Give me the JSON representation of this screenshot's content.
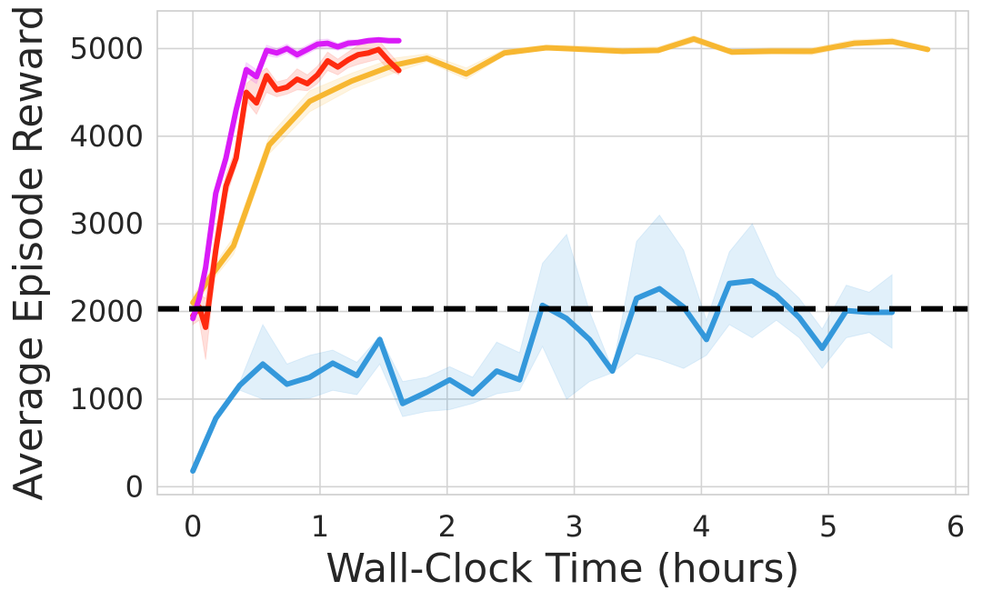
{
  "chart_data": {
    "type": "line",
    "xlabel": "Wall-Clock Time (hours)",
    "ylabel": "Average Episode Reward",
    "xlim": [
      -0.28,
      6.1
    ],
    "ylim": [
      -90,
      5430
    ],
    "xticks": [
      0,
      1,
      2,
      3,
      4,
      5,
      6
    ],
    "xtick_labels": [
      "0",
      "1",
      "2",
      "3",
      "4",
      "5",
      "6"
    ],
    "yticks": [
      0,
      1000,
      2000,
      3000,
      4000,
      5000
    ],
    "ytick_labels": [
      "0",
      "1000",
      "2000",
      "3000",
      "4000",
      "5000"
    ],
    "grid": true,
    "legend": "none",
    "reference_line": {
      "y": 2030,
      "style": "dashed",
      "color": "#000000"
    },
    "series": [
      {
        "color": "#3498db",
        "x": [
          0,
          0.18,
          0.37,
          0.55,
          0.74,
          0.92,
          1.1,
          1.29,
          1.47,
          1.65,
          1.84,
          2.02,
          2.2,
          2.39,
          2.57,
          2.75,
          2.94,
          3.12,
          3.3,
          3.49,
          3.67,
          3.86,
          4.04,
          4.22,
          4.4,
          4.59,
          4.77,
          4.95,
          5.14,
          5.32,
          5.5
        ],
        "y": [
          180,
          780,
          1160,
          1400,
          1170,
          1250,
          1410,
          1270,
          1680,
          950,
          1080,
          1220,
          1060,
          1320,
          1220,
          2070,
          1920,
          1680,
          1320,
          2150,
          2260,
          2050,
          1680,
          2320,
          2350,
          2180,
          1930,
          1580,
          2010,
          1990,
          1990
        ],
        "lower": [
          180,
          780,
          1100,
          1000,
          1000,
          1010,
          1100,
          1050,
          1400,
          800,
          860,
          880,
          950,
          1060,
          1100,
          1600,
          1000,
          1200,
          1300,
          1520,
          1450,
          1350,
          1500,
          1850,
          1700,
          1900,
          1700,
          1350,
          1700,
          1760,
          1580
        ],
        "upper": [
          180,
          780,
          1200,
          1850,
          1400,
          1500,
          1560,
          1420,
          1720,
          1200,
          1250,
          1370,
          1250,
          1650,
          1530,
          2550,
          2880,
          2000,
          1340,
          2800,
          3100,
          2700,
          1900,
          2680,
          3000,
          2400,
          2150,
          1800,
          2300,
          2220,
          2420
        ],
        "line_width": 6
      },
      {
        "color": "#f7b731",
        "x": [
          0,
          0.15,
          0.32,
          0.6,
          0.92,
          1.25,
          1.58,
          1.84,
          2.15,
          2.45,
          2.78,
          3.09,
          3.38,
          3.66,
          3.94,
          4.24,
          4.55,
          4.87,
          5.2,
          5.5,
          5.78
        ],
        "y": [
          2100,
          2420,
          2750,
          3900,
          4400,
          4630,
          4810,
          4890,
          4710,
          4950,
          5010,
          4990,
          4970,
          4980,
          5110,
          4960,
          4970,
          4970,
          5060,
          5080,
          4990
        ],
        "lower": [
          2020,
          2350,
          2650,
          3800,
          4280,
          4540,
          4720,
          4850,
          4650,
          4920,
          4990,
          4960,
          4940,
          4950,
          5070,
          4930,
          4940,
          4930,
          5030,
          5050,
          4970
        ],
        "upper": [
          2180,
          2490,
          2850,
          4000,
          4520,
          4720,
          4890,
          4940,
          4780,
          4990,
          5040,
          5030,
          5010,
          5020,
          5150,
          4990,
          5010,
          5010,
          5100,
          5120,
          5020
        ],
        "line_width": 6
      },
      {
        "color": "#ff2a0f",
        "x": [
          0,
          0.05,
          0.1,
          0.18,
          0.26,
          0.34,
          0.42,
          0.5,
          0.58,
          0.66,
          0.74,
          0.82,
          0.9,
          0.98,
          1.06,
          1.14,
          1.22,
          1.3,
          1.38,
          1.46,
          1.54,
          1.62
        ],
        "y": [
          1950,
          2050,
          1820,
          2700,
          3430,
          3750,
          4500,
          4380,
          4690,
          4530,
          4560,
          4650,
          4600,
          4700,
          4860,
          4790,
          4870,
          4930,
          4950,
          4990,
          4860,
          4750
        ],
        "lower": [
          1850,
          1900,
          1450,
          2500,
          3300,
          3650,
          4400,
          4250,
          4500,
          4450,
          4480,
          4530,
          4520,
          4600,
          4750,
          4700,
          4780,
          4820,
          4850,
          4880,
          4760,
          4700
        ],
        "upper": [
          2050,
          2200,
          2150,
          2900,
          3560,
          3870,
          4600,
          4700,
          4780,
          4620,
          4650,
          4770,
          4700,
          4800,
          4960,
          4880,
          4960,
          5040,
          5050,
          5100,
          4960,
          4830
        ],
        "line_width": 6
      },
      {
        "color": "#d91bf7",
        "x": [
          0,
          0.05,
          0.1,
          0.18,
          0.26,
          0.34,
          0.42,
          0.5,
          0.58,
          0.66,
          0.74,
          0.82,
          0.9,
          0.98,
          1.06,
          1.14,
          1.22,
          1.3,
          1.38,
          1.46,
          1.54,
          1.62
        ],
        "y": [
          1920,
          2150,
          2500,
          3350,
          3750,
          4300,
          4760,
          4680,
          4980,
          4950,
          5000,
          4930,
          4990,
          5050,
          5060,
          5020,
          5060,
          5070,
          5090,
          5100,
          5090,
          5090
        ],
        "lower": [
          1880,
          2100,
          2400,
          3250,
          3650,
          4200,
          4680,
          4600,
          4920,
          4900,
          4950,
          4880,
          4940,
          5000,
          5010,
          4980,
          5020,
          5040,
          5060,
          5070,
          5060,
          5060
        ],
        "upper": [
          1960,
          2200,
          2600,
          3450,
          3850,
          4400,
          4840,
          4760,
          5040,
          5000,
          5050,
          4980,
          5040,
          5100,
          5110,
          5060,
          5100,
          5100,
          5120,
          5130,
          5120,
          5120
        ],
        "line_width": 6
      }
    ]
  }
}
